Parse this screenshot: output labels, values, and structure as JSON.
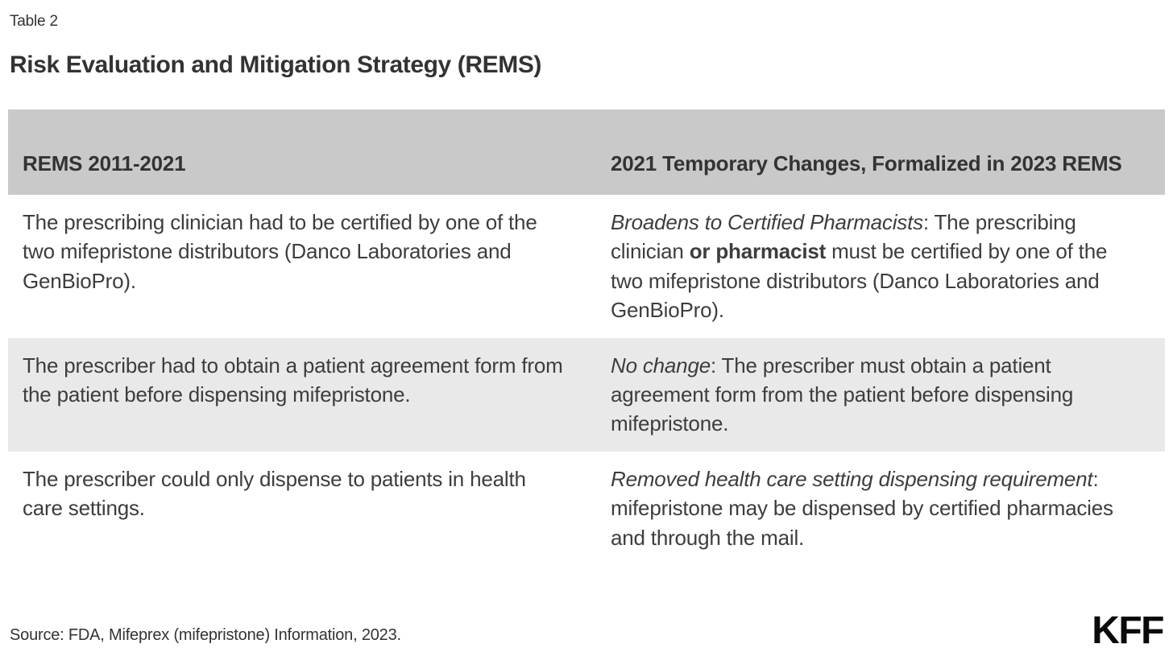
{
  "page": {
    "table_label": "Table 2",
    "title": "Risk Evaluation and Mitigation Strategy (REMS)"
  },
  "table": {
    "columns": [
      "REMS 2011-2021",
      "2021 Temporary Changes, Formalized in 2023 REMS"
    ],
    "rows": [
      {
        "left": "The prescribing clinician had to be certified by one of the two mifepristone distributors (Danco Laboratories and GenBioPro).",
        "right": {
          "italic_lead": "Broadens to Certified Pharmacists",
          "after_lead": ": The prescribing clinician ",
          "bold_text": "or pharmacist",
          "text_end": " must be certified by one of the two mifepristone distributors (Danco Laboratories and GenBioPro)."
        }
      },
      {
        "left": "The prescriber had to obtain a patient agreement form from the patient before dispensing mifepristone.",
        "right": {
          "italic_lead": "No change",
          "after_lead": ": The prescriber must obtain a patient agreement form from the patient before dispensing mifepristone.",
          "bold_text": "",
          "text_end": ""
        }
      },
      {
        "left": "The prescriber could only dispense to patients in health care settings.",
        "right": {
          "italic_lead": "Removed health care setting dispensing requirement",
          "after_lead": ": mifepristone may be dispensed by certified pharmacies and through the mail.",
          "bold_text": "",
          "text_end": ""
        }
      }
    ]
  },
  "footer": {
    "source": "Source: FDA, Mifeprex (mifepristone) Information, 2023.",
    "logo": "KFF"
  },
  "colors": {
    "header_bg": "#c9c9c9",
    "row_alt_bg": "#e9e9e9",
    "text": "#333333",
    "body_text": "#3d3d3d",
    "logo": "#0a0a0a",
    "page_bg": "#ffffff"
  },
  "chart_data": {
    "type": "table",
    "title": "Risk Evaluation and Mitigation Strategy (REMS)",
    "caption": "Table 2",
    "columns": [
      "REMS 2011-2021",
      "2021 Temporary Changes, Formalized in 2023 REMS"
    ],
    "rows": [
      [
        "The prescribing clinician had to be certified by one of the two mifepristone distributors (Danco Laboratories and GenBioPro).",
        "Broadens to Certified Pharmacists: The prescribing clinician or pharmacist must be certified by one of the two mifepristone distributors (Danco Laboratories and GenBioPro)."
      ],
      [
        "The prescriber had to obtain a patient agreement form from the patient before dispensing mifepristone.",
        "No change: The prescriber must obtain a patient agreement form from the patient before dispensing mifepristone."
      ],
      [
        "The prescriber could only dispense to patients in health care settings.",
        "Removed health care setting dispensing requirement: mifepristone may be dispensed by certified pharmacies and through the mail."
      ]
    ],
    "source": "Source: FDA, Mifeprex (mifepristone) Information, 2023.",
    "layout": "two-column comparison table, gray header band, alternating white/light-gray rows, KFF logo bottom right"
  }
}
